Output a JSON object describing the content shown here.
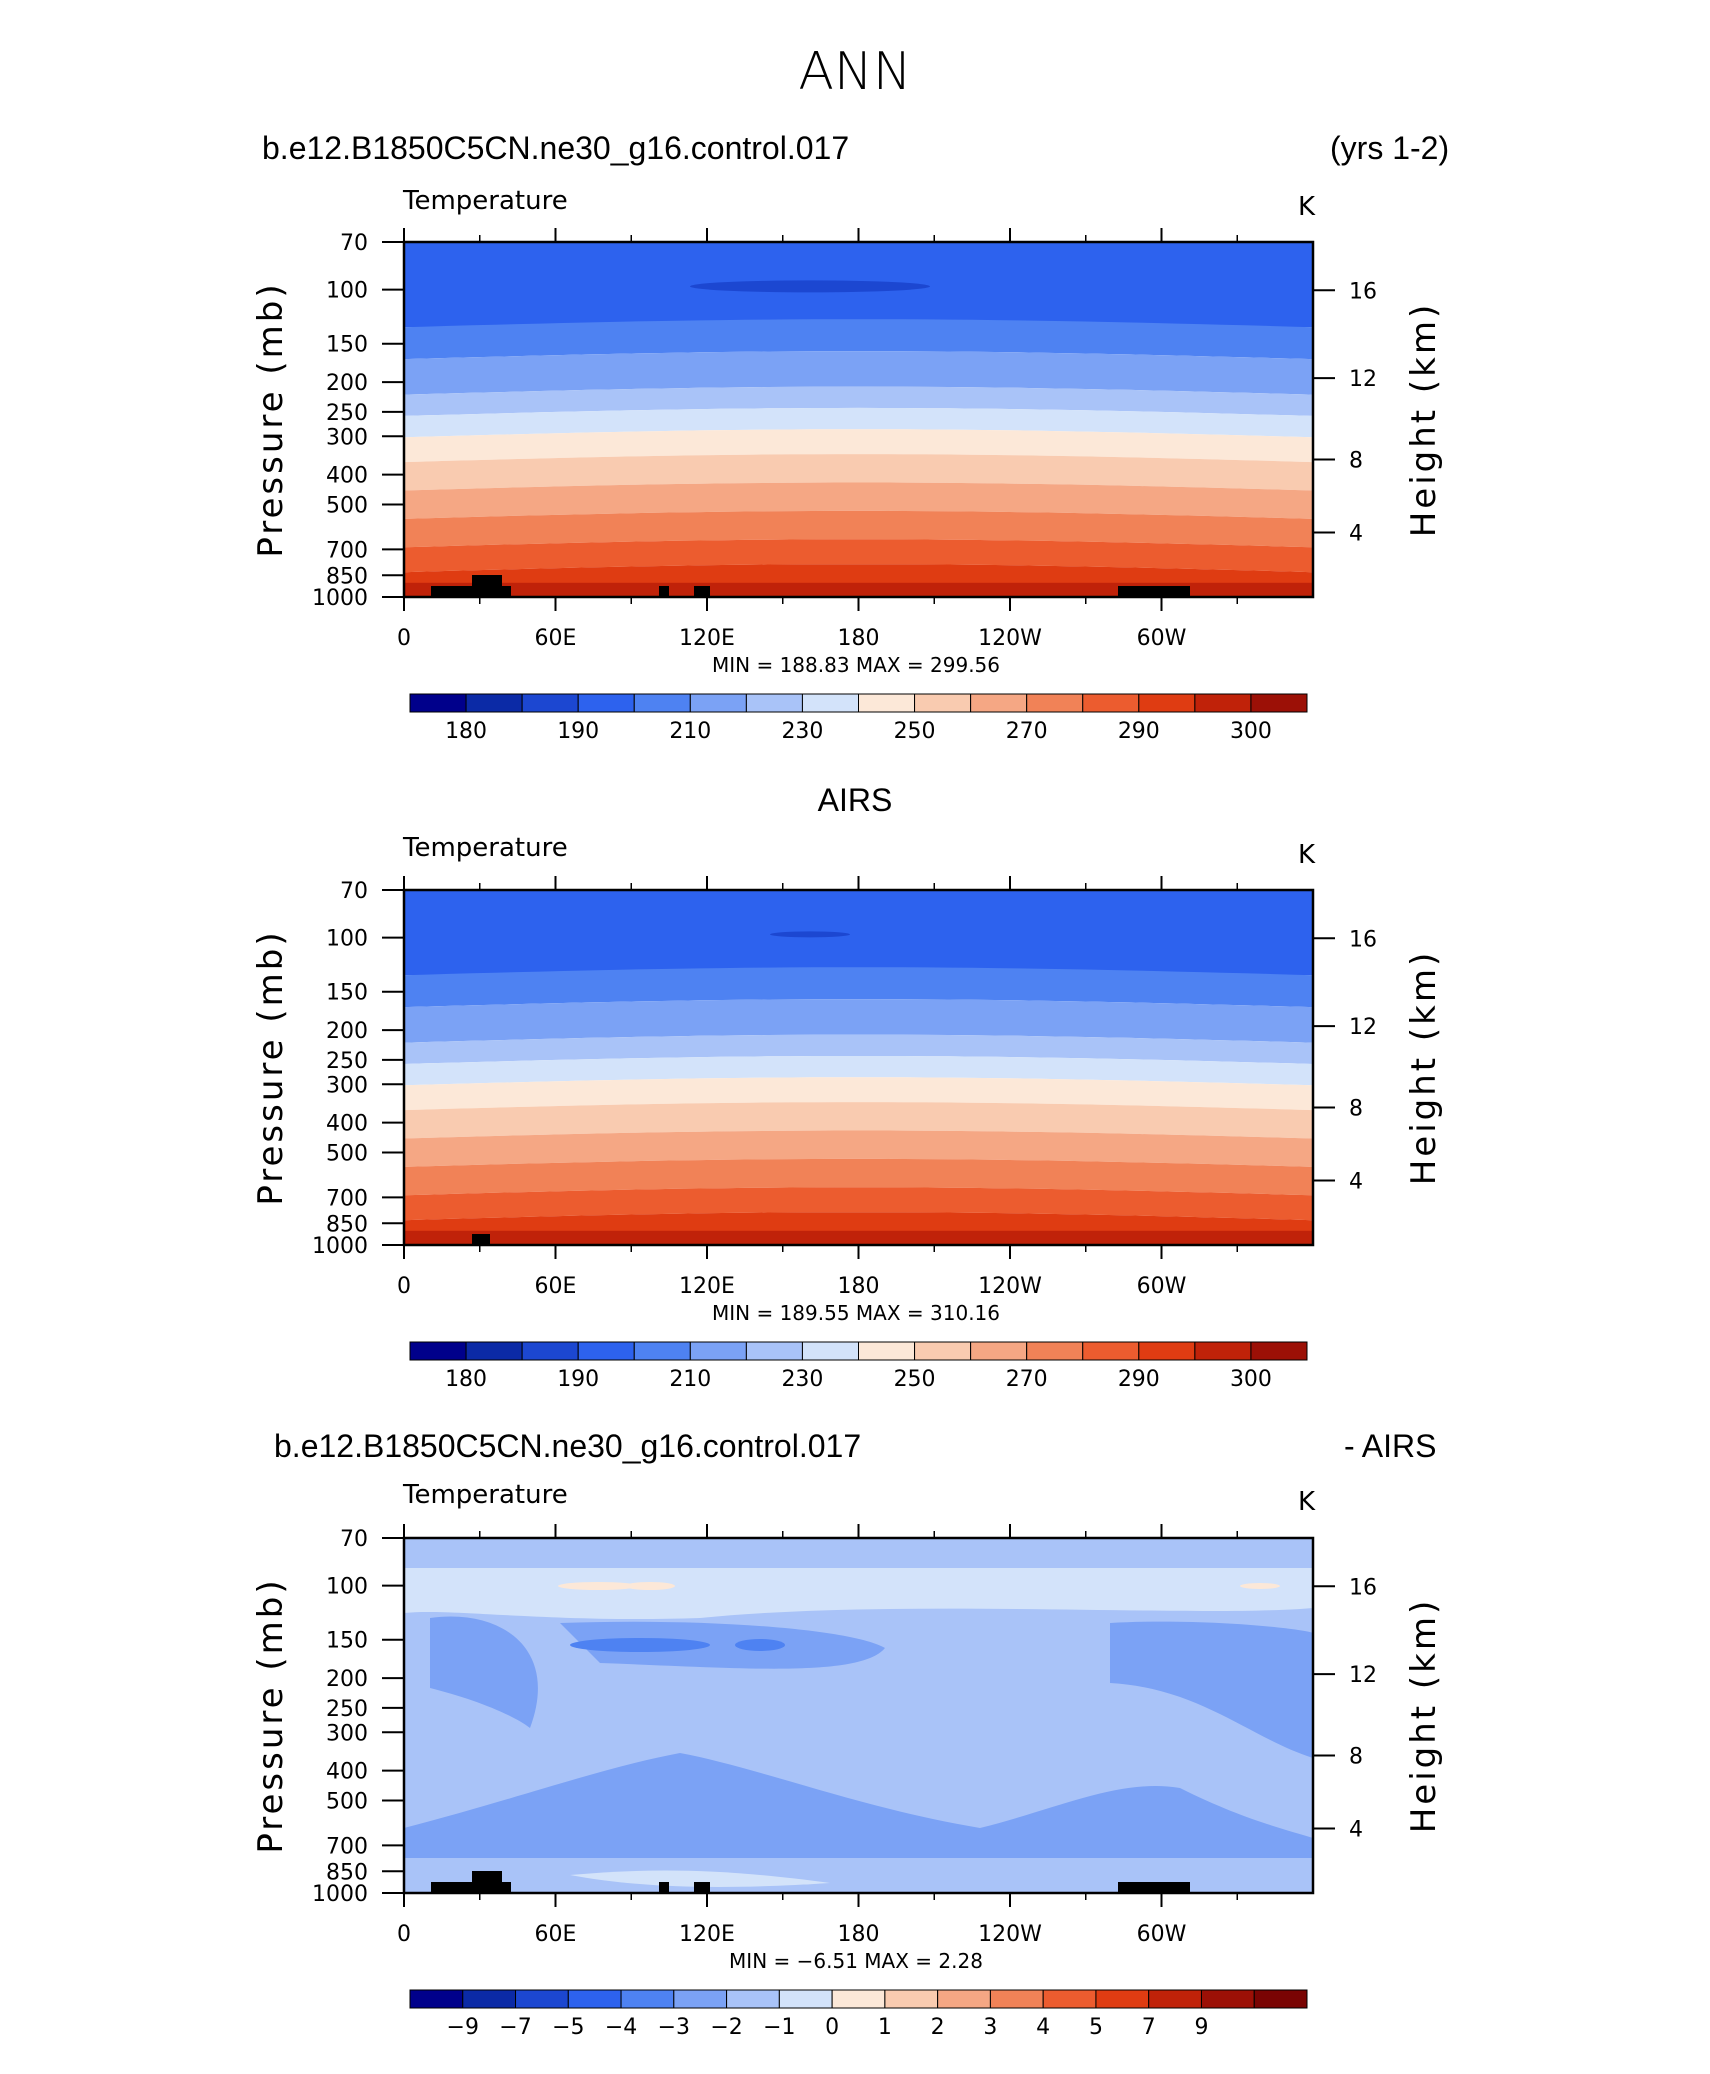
{
  "figure": {
    "title": "ANN",
    "panel1": {
      "left_title": "b.e12.B1850C5CN.ne30_g16.control.017",
      "right_title": "(yrs 1-2)",
      "variable": "Temperature",
      "units": "K",
      "stats": "MIN = 188.83   MAX = 299.56"
    },
    "panel2": {
      "center_title": "AIRS",
      "variable": "Temperature",
      "units": "K",
      "stats": "MIN = 189.55   MAX = 310.16"
    },
    "panel3": {
      "left_title": "b.e12.B1850C5CN.ne30_g16.control.017",
      "right_title": "- AIRS",
      "variable": "Temperature",
      "units": "K",
      "stats": "MIN =   −6.51   MAX =    2.28"
    }
  },
  "chart_data": [
    {
      "type": "contour",
      "title": "b.e12.B1850C5CN.ne30_g16.control.017 (yrs 1-2)",
      "xlabel": "",
      "ylabel": "Pressure (mb)",
      "y2label": "Height (km)",
      "x_ticks": [
        "0",
        "60E",
        "120E",
        "180",
        "120W",
        "60W"
      ],
      "y_ticks": [
        "70",
        "100",
        "150",
        "200",
        "250",
        "300",
        "400",
        "500",
        "700",
        "850",
        "1000"
      ],
      "y2_ticks": [
        "16",
        "12",
        "8",
        "4"
      ],
      "ylim": [
        1000,
        70
      ],
      "colorbar_labels": [
        "180",
        "190",
        "210",
        "230",
        "250",
        "270",
        "290",
        "300"
      ],
      "levels": [
        175,
        180,
        185,
        190,
        200,
        210,
        220,
        230,
        240,
        250,
        260,
        270,
        280,
        290,
        295,
        300,
        305
      ],
      "min": 188.83,
      "max": 299.56
    },
    {
      "type": "contour",
      "title": "AIRS",
      "ylabel": "Pressure (mb)",
      "y2label": "Height (km)",
      "x_ticks": [
        "0",
        "60E",
        "120E",
        "180",
        "120W",
        "60W"
      ],
      "y_ticks": [
        "70",
        "100",
        "150",
        "200",
        "250",
        "300",
        "400",
        "500",
        "700",
        "850",
        "1000"
      ],
      "y2_ticks": [
        "16",
        "12",
        "8",
        "4"
      ],
      "ylim": [
        1000,
        70
      ],
      "colorbar_labels": [
        "180",
        "190",
        "210",
        "230",
        "250",
        "270",
        "290",
        "300"
      ],
      "levels": [
        175,
        180,
        185,
        190,
        200,
        210,
        220,
        230,
        240,
        250,
        260,
        270,
        280,
        290,
        295,
        300,
        305
      ],
      "min": 189.55,
      "max": 310.16
    },
    {
      "type": "contour",
      "title": "b.e12.B1850C5CN.ne30_g16.control.017 - AIRS",
      "ylabel": "Pressure (mb)",
      "y2label": "Height (km)",
      "x_ticks": [
        "0",
        "60E",
        "120E",
        "180",
        "120W",
        "60W"
      ],
      "y_ticks": [
        "70",
        "100",
        "150",
        "200",
        "250",
        "300",
        "400",
        "500",
        "700",
        "850",
        "1000"
      ],
      "y2_ticks": [
        "16",
        "12",
        "8",
        "4"
      ],
      "ylim": [
        1000,
        70
      ],
      "colorbar_labels": [
        "−9",
        "−7",
        "−5",
        "−4",
        "−3",
        "−2",
        "−1",
        "0",
        "1",
        "2",
        "3",
        "4",
        "5",
        "7",
        "9"
      ],
      "levels": [
        -9,
        -7,
        -5,
        -4,
        -3,
        -2,
        -1,
        0,
        1,
        2,
        3,
        4,
        5,
        7,
        9
      ],
      "min": -6.51,
      "max": 2.28
    }
  ],
  "colors": [
    "#00008b",
    "#0b2aa6",
    "#1c47d1",
    "#2d62ee",
    "#4e82f2",
    "#7ba2f5",
    "#a9c3f8",
    "#d3e3fa",
    "#fce8d8",
    "#f9cbb0",
    "#f5a784",
    "#f18257",
    "#ec5c2f",
    "#df3c12",
    "#c02209",
    "#9c1006",
    "#7a0403"
  ]
}
